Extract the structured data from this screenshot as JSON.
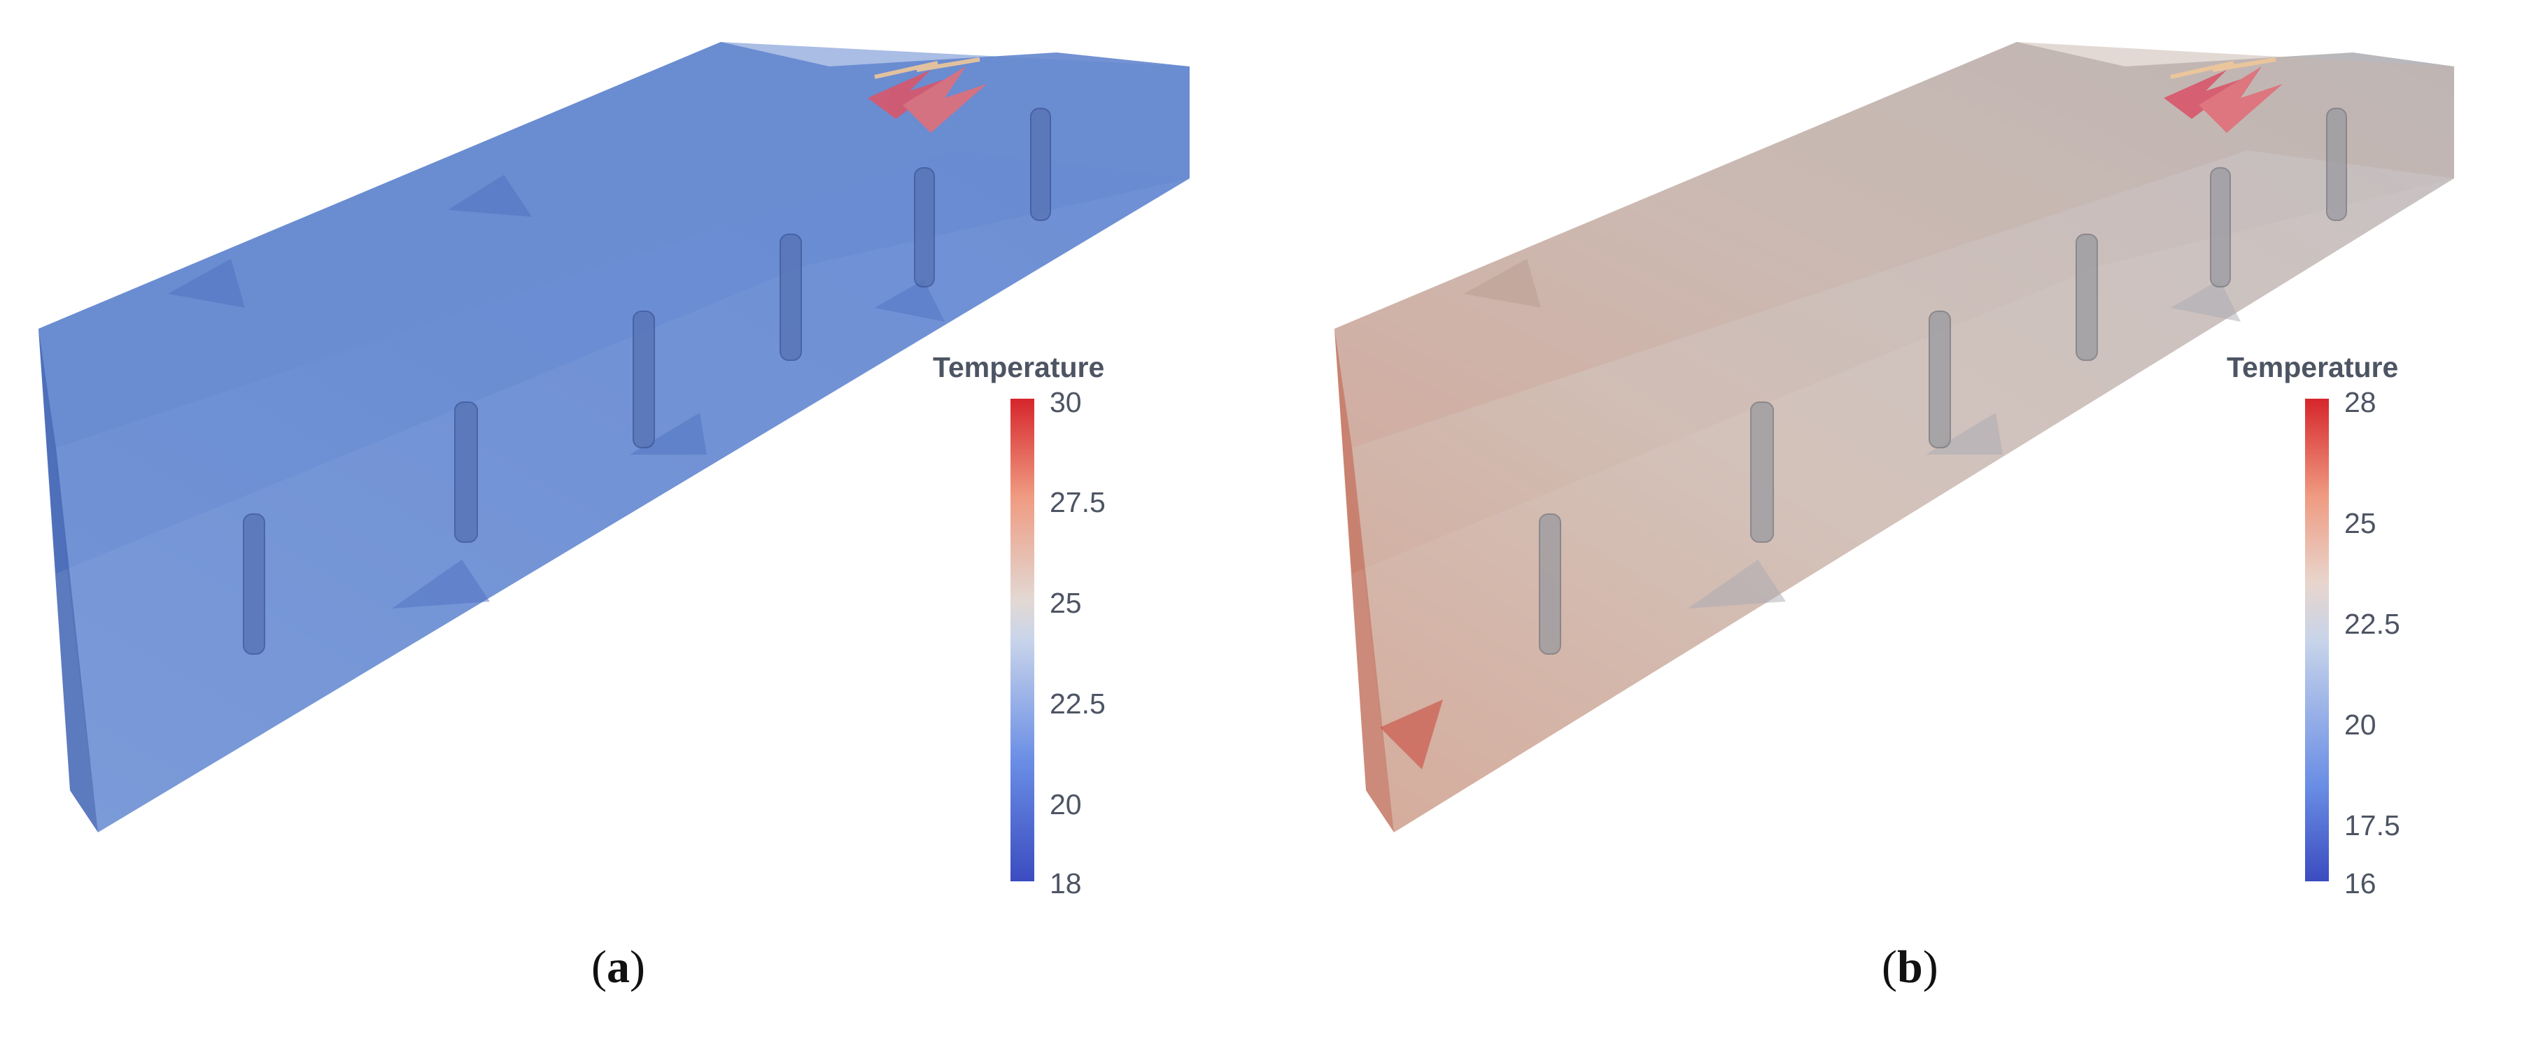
{
  "panels": [
    {
      "id": "a",
      "caption_open": "(",
      "caption_letter": "a",
      "caption_close": ")",
      "colorbar": {
        "title": "Temperature",
        "min": 18,
        "max": 30,
        "ticks": [
          "30",
          "27.5",
          "25",
          "22.5",
          "20",
          "18"
        ]
      },
      "volume_tint": "#5f86cf",
      "floor_tint": "#7f9fdb"
    },
    {
      "id": "b",
      "caption_open": "(",
      "caption_letter": "b",
      "caption_close": ")",
      "colorbar": {
        "title": "Temperature",
        "min": 16,
        "max": 28,
        "ticks": [
          "28",
          "25",
          "22.5",
          "20",
          "17.5",
          "16"
        ]
      },
      "volume_tint": "#c8b8b0",
      "floor_tint": "#d9c7bd"
    }
  ],
  "colors": {
    "cold": "#3b4cc0",
    "neutral": "#dddddd",
    "hot": "#d6262b",
    "label": "#4d5463"
  }
}
